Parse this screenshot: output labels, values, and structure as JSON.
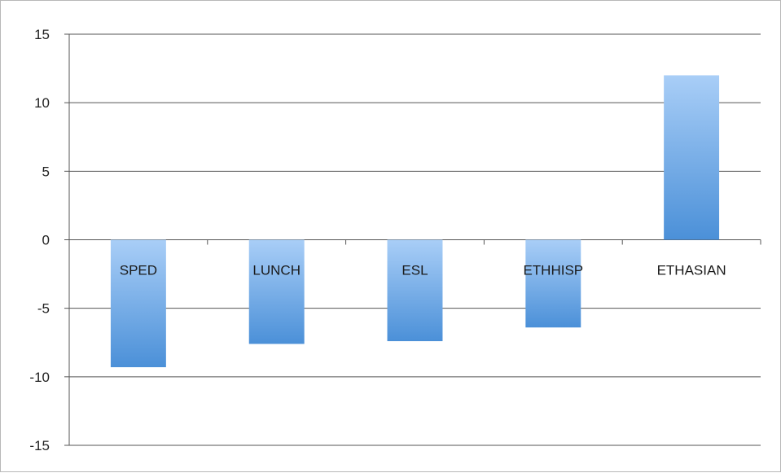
{
  "chart_data": {
    "type": "bar",
    "categories": [
      "SPED",
      "LUNCH",
      "ESL",
      "ETHHISP",
      "ETHASIAN"
    ],
    "values": [
      -9.3,
      -7.6,
      -7.4,
      -6.4,
      12
    ],
    "ylim": [
      -15,
      15
    ],
    "yticks": [
      15,
      10,
      5,
      0,
      -5,
      -10,
      -15
    ],
    "ytick_labels": [
      "15",
      "10",
      "5",
      "0",
      "-5",
      "-10",
      "-15"
    ],
    "grid": true,
    "legend": "none",
    "colors": {
      "bar_top": "#a9cef7",
      "bar_bottom": "#4b90d8",
      "grid": "#555555"
    }
  }
}
